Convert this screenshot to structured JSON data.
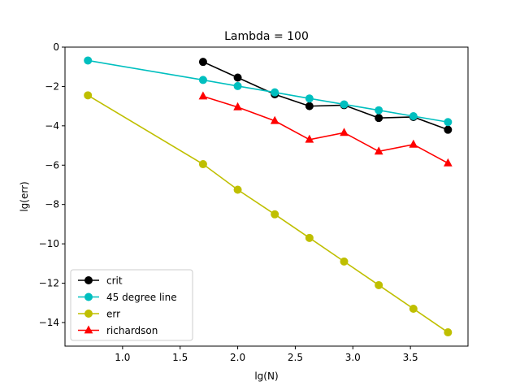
{
  "chart_data": {
    "type": "line",
    "title": "Lambda = 100",
    "xlabel": "lg(N)",
    "ylabel": "lg(err)",
    "xlim": [
      0.5,
      4.0
    ],
    "ylim": [
      -15.2,
      0.0
    ],
    "xticks": [
      1.0,
      1.5,
      2.0,
      2.5,
      3.0,
      3.5
    ],
    "xtick_labels": [
      "1.0",
      "1.5",
      "2.0",
      "2.5",
      "3.0",
      "3.5"
    ],
    "yticks": [
      0,
      -2,
      -4,
      -6,
      -8,
      -10,
      -12,
      -14
    ],
    "ytick_labels": [
      "0",
      "−2",
      "−4",
      "−6",
      "−8",
      "−10",
      "−12",
      "−14"
    ],
    "grid": false,
    "legend_position": "lower-left",
    "series": [
      {
        "name": "crit",
        "color": "#000000",
        "marker": "circle",
        "x": [
          1.699,
          2.0,
          2.322,
          2.623,
          2.924,
          3.225,
          3.526,
          3.826
        ],
        "y": [
          -0.75,
          -1.55,
          -2.4,
          -3.0,
          -2.95,
          -3.6,
          -3.55,
          -4.2
        ]
      },
      {
        "name": "45 degree line",
        "color": "#00bfbf",
        "marker": "circle",
        "x": [
          0.699,
          1.699,
          2.0,
          2.322,
          2.623,
          2.924,
          3.225,
          3.526,
          3.826
        ],
        "y": [
          -0.68,
          -1.67,
          -1.98,
          -2.3,
          -2.61,
          -2.91,
          -3.21,
          -3.51,
          -3.81
        ]
      },
      {
        "name": "err",
        "color": "#bfbf00",
        "marker": "circle",
        "x": [
          0.699,
          1.699,
          2.0,
          2.322,
          2.623,
          2.924,
          3.225,
          3.526,
          3.826
        ],
        "y": [
          -2.45,
          -5.95,
          -7.25,
          -8.5,
          -9.7,
          -10.9,
          -12.1,
          -13.3,
          -14.5
        ]
      },
      {
        "name": "richardson",
        "color": "#ff0000",
        "marker": "triangle",
        "x": [
          1.699,
          2.0,
          2.322,
          2.623,
          2.924,
          3.225,
          3.526,
          3.826
        ],
        "y": [
          -2.5,
          -3.05,
          -3.75,
          -4.7,
          -4.35,
          -5.3,
          -4.95,
          -5.9
        ]
      }
    ]
  }
}
